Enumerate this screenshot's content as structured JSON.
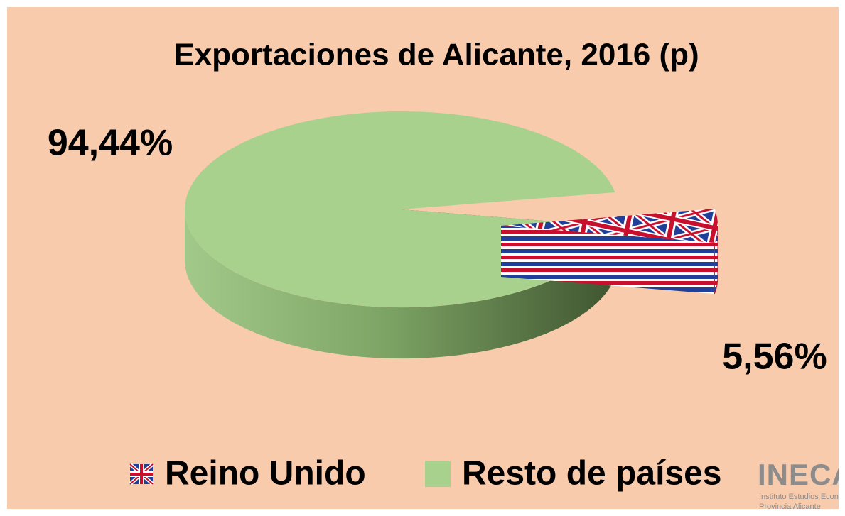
{
  "chart_data": {
    "type": "pie",
    "title": "Exportaciones de Alicante, 2016 (p)",
    "categories": [
      "Reino Unido",
      "Resto de países"
    ],
    "values": [
      5.56,
      94.44
    ],
    "value_labels": [
      "5,56%",
      "94,44%"
    ],
    "colors": [
      "#c8102e",
      "#a9d18e"
    ],
    "legend": "bottom"
  },
  "logo": {
    "name": "INECA",
    "lines": [
      "Instituto Estudios Económicos",
      "Provincia Alicante"
    ]
  }
}
